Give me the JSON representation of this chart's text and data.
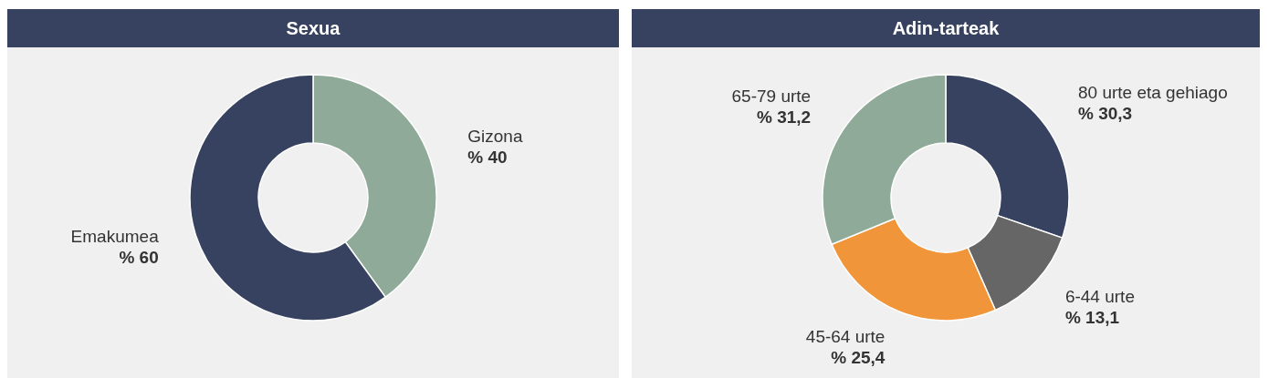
{
  "chart_data": [
    {
      "type": "donut",
      "title": "Sexua",
      "categories": [
        "Gizona",
        "Emakumea"
      ],
      "values": [
        40,
        60
      ],
      "colors": [
        "#8faa98",
        "#36425f"
      ],
      "value_labels": [
        "% 40",
        "% 60"
      ]
    },
    {
      "type": "donut",
      "title": "Adin-tarteak",
      "categories": [
        "80 urte eta gehiago",
        "6-44 urte",
        "45-64 urte",
        "65-79 urte"
      ],
      "values": [
        30.3,
        13.1,
        25.4,
        31.2
      ],
      "colors": [
        "#36425f",
        "#666666",
        "#f0953a",
        "#8faa98"
      ],
      "value_labels": [
        "% 30,3",
        "% 13,1",
        "% 25,4",
        "% 31,2"
      ]
    }
  ]
}
